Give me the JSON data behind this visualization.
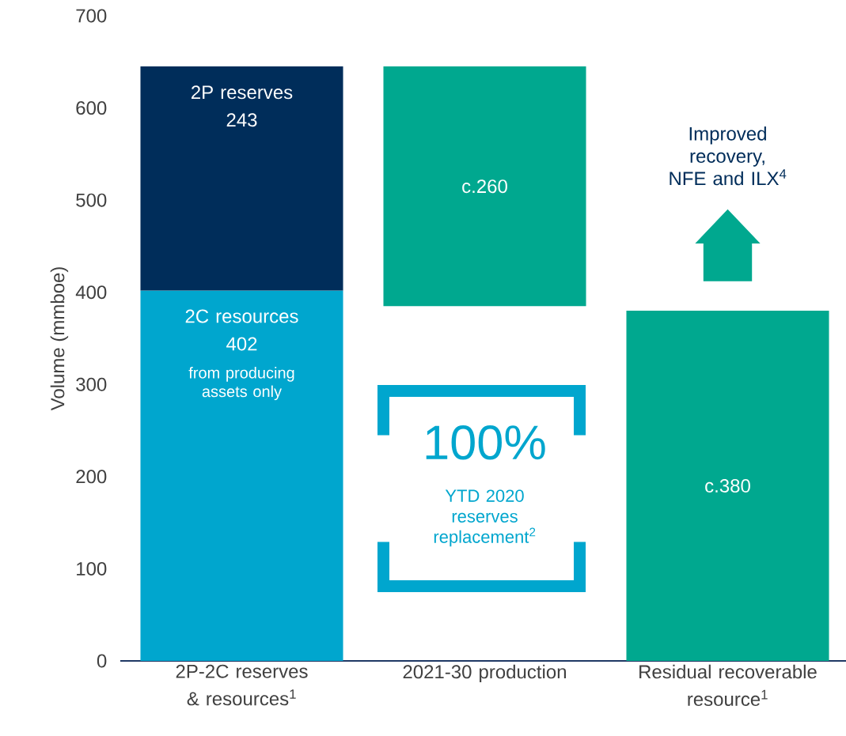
{
  "chart_data": {
    "type": "bar",
    "categories": [
      "2P-2C reserves & resources$^{1}$",
      "2021-30 production",
      "Residual recoverable resource$^{1}$"
    ],
    "series": [
      {
        "colors": [
          "#00a6ce",
          "#00a6ce",
          "#00a88f"
        ],
        "values": [
          402,
          null,
          380
        ],
        "value_labels": [
          "402",
          null,
          "c.380"
        ]
      },
      {
        "colors": [
          "#002d5a",
          "#00a88f",
          "#00a88f"
        ],
        "base": [
          402,
          385,
          null
        ],
        "values": [
          243,
          260,
          null
        ],
        "value_labels": [
          "243",
          "c.260",
          null
        ]
      }
    ],
    "ylabel": "Volume (mmboe)",
    "ylim": [
      0,
      700
    ],
    "yticks": [
      0,
      100,
      200,
      300,
      400,
      500,
      600,
      700
    ],
    "annotations": [
      "2P reserves",
      "2C resources",
      "from producing assets only",
      "100%",
      "YTD 2020 reserves replacement$^{2}$",
      "Improved recovery, NFE and ILX$^{4}$"
    ]
  }
}
